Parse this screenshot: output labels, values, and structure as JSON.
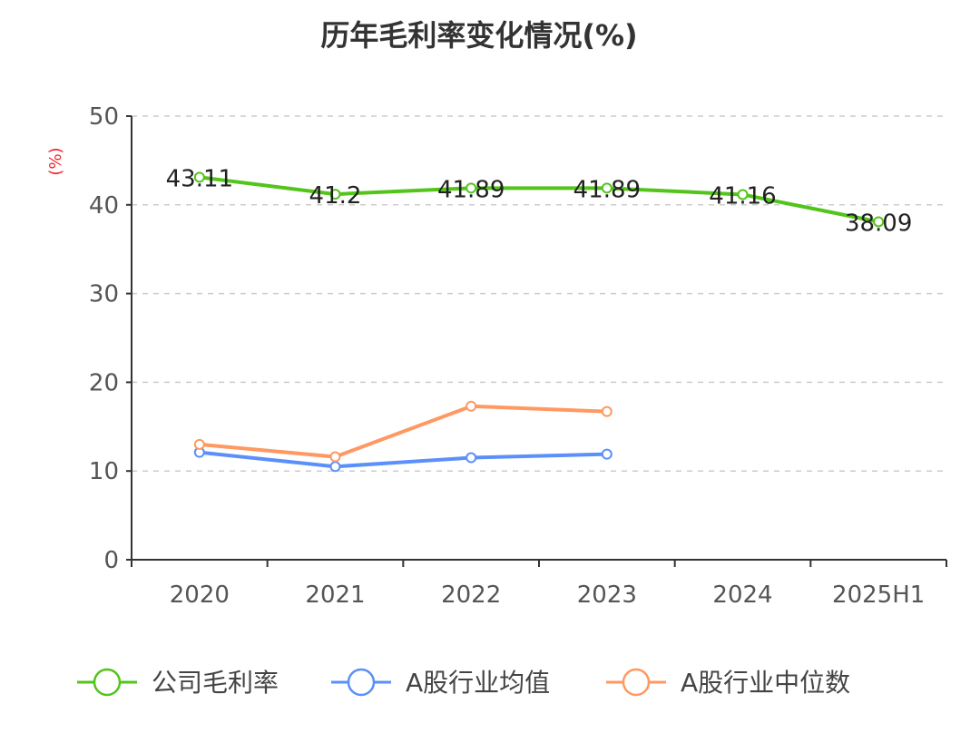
{
  "chart_data": {
    "type": "line",
    "title": "历年毛利率变化情况(%)",
    "ylabel": "(%)",
    "xlabel": "",
    "ylim": [
      0,
      50
    ],
    "yticks": [
      0,
      10,
      20,
      30,
      40,
      50
    ],
    "grid": true,
    "legend_position": "bottom",
    "categories": [
      "2020",
      "2021",
      "2022",
      "2023",
      "2024",
      "2025H1"
    ],
    "series": [
      {
        "name": "公司毛利率",
        "color": "#52c41a",
        "values": [
          43.11,
          41.2,
          41.89,
          41.89,
          41.16,
          38.09
        ],
        "labels": [
          "43.11",
          "41.2",
          "41.89",
          "41.89",
          "41.16",
          "38.09"
        ]
      },
      {
        "name": "A股行业均值",
        "color": "#5b8ff9",
        "values": [
          12.1,
          10.5,
          11.5,
          11.9,
          null,
          null
        ]
      },
      {
        "name": "A股行业中位数",
        "color": "#ff9861",
        "values": [
          13.0,
          11.6,
          17.3,
          16.7,
          null,
          null
        ]
      }
    ]
  }
}
